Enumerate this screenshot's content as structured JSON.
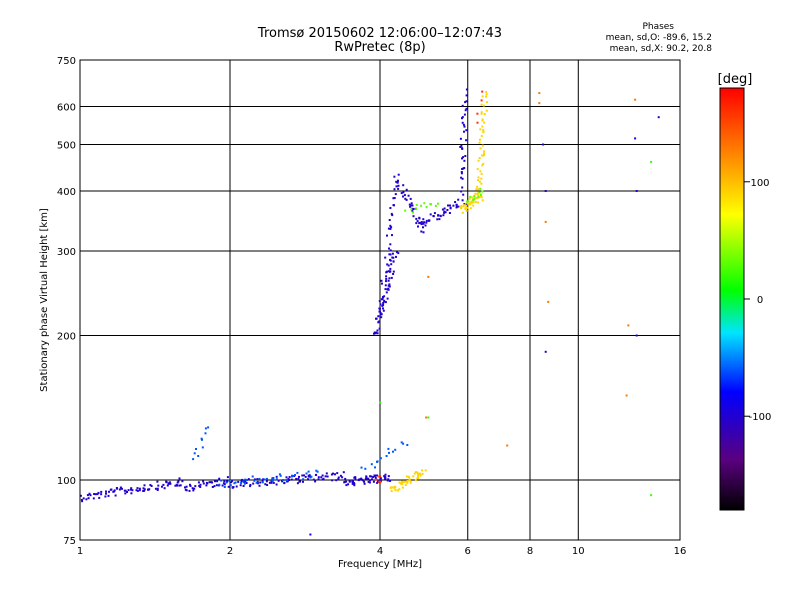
{
  "chart_data": {
    "type": "scatter",
    "title": "Tromsø 20150602 12:06:00–12:07:43",
    "subtitle": "RwPretec (8p)",
    "xlabel": "Frequency [MHz]",
    "ylabel": "Stationary phase Virtual Height [km]",
    "x_scale": "log",
    "y_scale": "log",
    "xlim": [
      1,
      16
    ],
    "ylim": [
      75,
      750
    ],
    "x_ticks": [
      1,
      2,
      4,
      6,
      8,
      10,
      16
    ],
    "y_ticks": [
      75,
      100,
      200,
      300,
      400,
      500,
      600,
      750
    ],
    "grid": true,
    "phase_panel": {
      "title": "Phases",
      "o_line": "mean, sd,O: -89.6, 15.2",
      "x_line": "mean, sd,X:  90.2, 20.8"
    },
    "colorbar": {
      "title": "[deg]",
      "range": [
        -180,
        180
      ],
      "ticks": [
        100,
        0,
        -100
      ],
      "colors": [
        "#000000",
        "#5a0080",
        "#0000ff",
        "#00e5ff",
        "#00ff00",
        "#ffff00",
        "#ff8000",
        "#ff0000"
      ]
    },
    "series": [
      {
        "phase": -100,
        "segments": [
          {
            "x": [
              1.0,
              1.6
            ],
            "y": [
              92,
              99
            ],
            "n": 80
          },
          {
            "x": [
              1.6,
              2.0
            ],
            "y": [
              96,
              100
            ],
            "n": 40
          },
          {
            "x": [
              2.0,
              3.4
            ],
            "y": [
              98,
              102
            ],
            "n": 90
          },
          {
            "x": [
              3.4,
              4.2
            ],
            "y": [
              99,
              101
            ],
            "n": 60
          },
          {
            "x": [
              3.9,
              4.3
            ],
            "y": [
              200,
              300
            ],
            "n": 55
          },
          {
            "x": [
              4.0,
              4.3
            ],
            "y": [
              220,
              400
            ],
            "n": 40
          },
          {
            "x": [
              4.3,
              4.9
            ],
            "y": [
              430,
              330
            ],
            "n": 40
          },
          {
            "x": [
              4.8,
              5.9
            ],
            "y": [
              340,
              380
            ],
            "n": 45
          },
          {
            "x": [
              5.8,
              5.95
            ],
            "y": [
              400,
              640
            ],
            "n": 35
          }
        ]
      },
      {
        "phase": -60,
        "segments": [
          {
            "x": [
              1.7,
              1.8
            ],
            "y": [
              110,
              130
            ],
            "n": 10
          },
          {
            "x": [
              1.9,
              3.0
            ],
            "y": [
              98,
              103
            ],
            "n": 40
          },
          {
            "x": [
              3.7,
              4.5
            ],
            "y": [
              105,
              120
            ],
            "n": 15
          }
        ]
      },
      {
        "phase": 90,
        "segments": [
          {
            "x": [
              4.2,
              4.9
            ],
            "y": [
              95,
              104
            ],
            "n": 45
          },
          {
            "x": [
              5.8,
              6.4
            ],
            "y": [
              365,
              390
            ],
            "n": 40
          },
          {
            "x": [
              6.3,
              6.5
            ],
            "y": [
              390,
              640
            ],
            "n": 45
          }
        ]
      },
      {
        "phase": 30,
        "segments": [
          {
            "x": [
              4.5,
              5.2
            ],
            "y": [
              360,
              380
            ],
            "n": 12
          },
          {
            "x": [
              6.0,
              6.4
            ],
            "y": [
              380,
              400
            ],
            "n": 12
          }
        ]
      },
      {
        "phase": 160,
        "segments": [
          {
            "x": [
              3.9,
              4.05
            ],
            "y": [
              99,
              101
            ],
            "n": 6
          },
          {
            "x": [
              6.2,
              6.5
            ],
            "y": [
              560,
              640
            ],
            "n": 4
          }
        ]
      },
      {
        "phase": 130,
        "points": [
          [
            5.0,
            265
          ],
          [
            7.2,
            118
          ],
          [
            8.35,
            640
          ],
          [
            8.35,
            610
          ],
          [
            8.7,
            235
          ],
          [
            8.6,
            345
          ],
          [
            12.5,
            150
          ],
          [
            12.6,
            210
          ],
          [
            13.0,
            620
          ],
          [
            4.95,
            135
          ]
        ]
      },
      {
        "phase": -100,
        "points": [
          [
            8.5,
            500
          ],
          [
            8.6,
            400
          ],
          [
            8.6,
            185
          ],
          [
            13.0,
            515
          ],
          [
            13.1,
            400
          ],
          [
            13.1,
            200
          ],
          [
            14.5,
            570
          ],
          [
            2.9,
            77
          ]
        ]
      },
      {
        "phase": 20,
        "points": [
          [
            14.0,
            460
          ],
          [
            14.0,
            93
          ],
          [
            4.0,
            145
          ],
          [
            5.0,
            135
          ]
        ]
      }
    ]
  }
}
